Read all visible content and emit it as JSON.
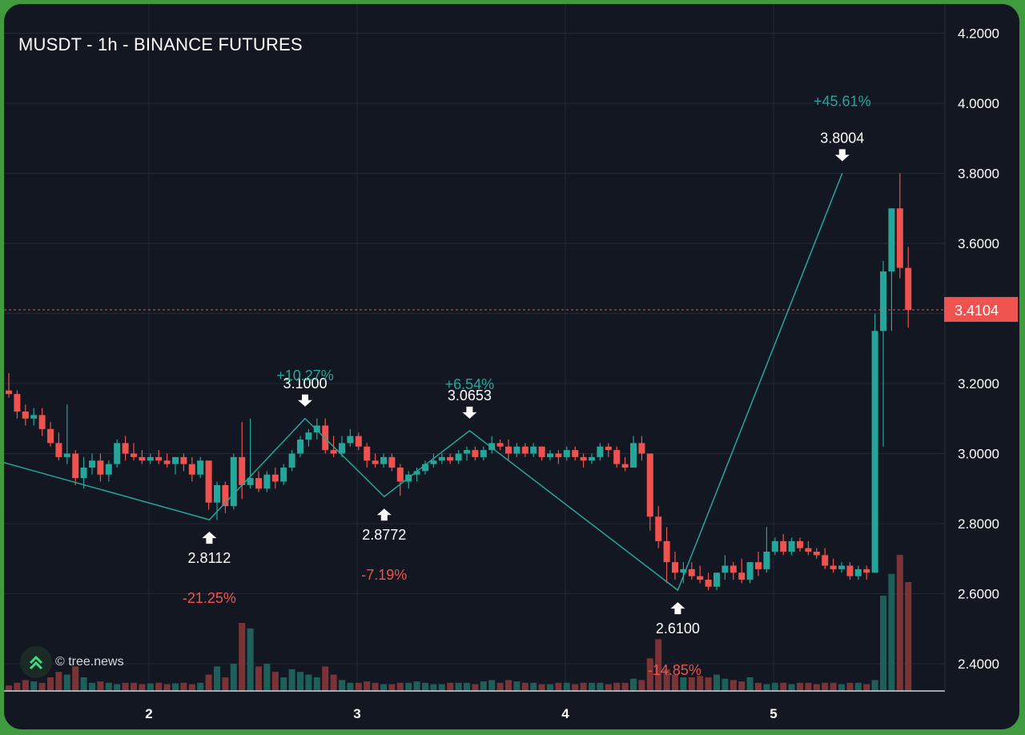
{
  "chart_data": {
    "type": "candlestick",
    "title": "MUSDT - 1h - BINANCE FUTURES",
    "x_ticks": [
      "2",
      "3",
      "4",
      "5"
    ],
    "y_ticks": [
      "2.4000",
      "2.6000",
      "2.8000",
      "3.0000",
      "3.2000",
      "3.4000",
      "3.6000",
      "3.8000",
      "4.0000",
      "4.2000"
    ],
    "ylim": [
      2.32,
      4.26
    ],
    "last_price": "3.4104",
    "grid": true,
    "colors": {
      "up": "#26a69a",
      "down": "#ef5350",
      "zigzag": "#26a69a",
      "background": "#131722",
      "grid": "#252a36"
    },
    "pivots": [
      {
        "x": 0.0,
        "y": 3.19,
        "label": ""
      },
      {
        "x": 2.29,
        "y": 2.8112,
        "label": "2.8112",
        "kind": "low",
        "pct": "-21.25%"
      },
      {
        "x": 2.75,
        "y": 3.1,
        "label": "3.1000",
        "kind": "high",
        "pct": "+10.27%"
      },
      {
        "x": 3.13,
        "y": 2.8772,
        "label": "2.8772",
        "kind": "low",
        "pct": "-7.19%"
      },
      {
        "x": 3.54,
        "y": 3.0653,
        "label": "3.0653",
        "kind": "high",
        "pct": "+6.54%"
      },
      {
        "x": 4.54,
        "y": 2.61,
        "label": "2.6100",
        "kind": "low",
        "pct": "-14.85%"
      },
      {
        "x": 5.33,
        "y": 3.8004,
        "label": "3.8004",
        "kind": "high",
        "pct": "+45.61%"
      }
    ],
    "candles": [
      {
        "o": 3.18,
        "h": 3.23,
        "l": 3.16,
        "c": 3.17
      },
      {
        "o": 3.17,
        "h": 3.18,
        "l": 3.1,
        "c": 3.12
      },
      {
        "o": 3.12,
        "h": 3.14,
        "l": 3.08,
        "c": 3.1
      },
      {
        "o": 3.1,
        "h": 3.13,
        "l": 3.08,
        "c": 3.11
      },
      {
        "o": 3.11,
        "h": 3.13,
        "l": 3.05,
        "c": 3.07
      },
      {
        "o": 3.07,
        "h": 3.09,
        "l": 3.02,
        "c": 3.03
      },
      {
        "o": 3.03,
        "h": 3.06,
        "l": 2.98,
        "c": 2.99
      },
      {
        "o": 2.99,
        "h": 3.14,
        "l": 2.97,
        "c": 3.0
      },
      {
        "o": 3.0,
        "h": 3.01,
        "l": 2.91,
        "c": 2.93
      },
      {
        "o": 2.93,
        "h": 2.99,
        "l": 2.9,
        "c": 2.96
      },
      {
        "o": 2.96,
        "h": 3.0,
        "l": 2.94,
        "c": 2.98
      },
      {
        "o": 2.98,
        "h": 3.0,
        "l": 2.92,
        "c": 2.94
      },
      {
        "o": 2.94,
        "h": 2.98,
        "l": 2.92,
        "c": 2.97
      },
      {
        "o": 2.97,
        "h": 3.04,
        "l": 2.96,
        "c": 3.03
      },
      {
        "o": 3.03,
        "h": 3.05,
        "l": 2.98,
        "c": 3.0
      },
      {
        "o": 3.0,
        "h": 3.03,
        "l": 2.98,
        "c": 2.99
      },
      {
        "o": 2.99,
        "h": 3.01,
        "l": 2.97,
        "c": 2.98
      },
      {
        "o": 2.98,
        "h": 3.0,
        "l": 2.97,
        "c": 2.99
      },
      {
        "o": 2.99,
        "h": 3.01,
        "l": 2.97,
        "c": 2.98
      },
      {
        "o": 2.98,
        "h": 3.0,
        "l": 2.96,
        "c": 2.97
      },
      {
        "o": 2.97,
        "h": 2.99,
        "l": 2.94,
        "c": 2.99
      },
      {
        "o": 2.99,
        "h": 3.0,
        "l": 2.95,
        "c": 2.97
      },
      {
        "o": 2.97,
        "h": 2.99,
        "l": 2.92,
        "c": 2.94
      },
      {
        "o": 2.94,
        "h": 2.99,
        "l": 2.93,
        "c": 2.98
      },
      {
        "o": 2.98,
        "h": 2.98,
        "l": 2.84,
        "c": 2.86
      },
      {
        "o": 2.86,
        "h": 2.92,
        "l": 2.81,
        "c": 2.91
      },
      {
        "o": 2.91,
        "h": 2.92,
        "l": 2.83,
        "c": 2.85
      },
      {
        "o": 2.85,
        "h": 3.0,
        "l": 2.84,
        "c": 2.99
      },
      {
        "o": 2.99,
        "h": 3.09,
        "l": 2.87,
        "c": 2.91
      },
      {
        "o": 2.91,
        "h": 3.1,
        "l": 2.9,
        "c": 2.93
      },
      {
        "o": 2.93,
        "h": 2.95,
        "l": 2.89,
        "c": 2.9
      },
      {
        "o": 2.9,
        "h": 2.95,
        "l": 2.89,
        "c": 2.94
      },
      {
        "o": 2.94,
        "h": 2.96,
        "l": 2.9,
        "c": 2.92
      },
      {
        "o": 2.92,
        "h": 2.97,
        "l": 2.91,
        "c": 2.96
      },
      {
        "o": 2.96,
        "h": 3.01,
        "l": 2.95,
        "c": 3.0
      },
      {
        "o": 3.0,
        "h": 3.05,
        "l": 2.99,
        "c": 3.04
      },
      {
        "o": 3.04,
        "h": 3.07,
        "l": 3.02,
        "c": 3.06
      },
      {
        "o": 3.06,
        "h": 3.1,
        "l": 3.04,
        "c": 3.08
      },
      {
        "o": 3.08,
        "h": 3.1,
        "l": 3.0,
        "c": 3.01
      },
      {
        "o": 3.01,
        "h": 3.05,
        "l": 2.99,
        "c": 3.0
      },
      {
        "o": 3.0,
        "h": 3.05,
        "l": 2.99,
        "c": 3.03
      },
      {
        "o": 3.03,
        "h": 3.07,
        "l": 3.02,
        "c": 3.05
      },
      {
        "o": 3.05,
        "h": 3.06,
        "l": 3.01,
        "c": 3.02
      },
      {
        "o": 3.02,
        "h": 3.03,
        "l": 2.96,
        "c": 2.98
      },
      {
        "o": 2.98,
        "h": 3.0,
        "l": 2.96,
        "c": 2.97
      },
      {
        "o": 2.97,
        "h": 3.0,
        "l": 2.96,
        "c": 2.99
      },
      {
        "o": 2.99,
        "h": 3.0,
        "l": 2.95,
        "c": 2.96
      },
      {
        "o": 2.96,
        "h": 2.97,
        "l": 2.88,
        "c": 2.92
      },
      {
        "o": 2.92,
        "h": 2.95,
        "l": 2.9,
        "c": 2.94
      },
      {
        "o": 2.94,
        "h": 2.96,
        "l": 2.92,
        "c": 2.95
      },
      {
        "o": 2.95,
        "h": 2.98,
        "l": 2.94,
        "c": 2.97
      },
      {
        "o": 2.97,
        "h": 3.0,
        "l": 2.96,
        "c": 2.98
      },
      {
        "o": 2.98,
        "h": 3.0,
        "l": 2.97,
        "c": 2.99
      },
      {
        "o": 2.99,
        "h": 3.0,
        "l": 2.97,
        "c": 2.98
      },
      {
        "o": 2.98,
        "h": 3.01,
        "l": 2.97,
        "c": 3.0
      },
      {
        "o": 3.0,
        "h": 3.02,
        "l": 2.98,
        "c": 3.01
      },
      {
        "o": 3.01,
        "h": 3.02,
        "l": 2.98,
        "c": 2.99
      },
      {
        "o": 2.99,
        "h": 3.02,
        "l": 2.98,
        "c": 3.01
      },
      {
        "o": 3.01,
        "h": 3.05,
        "l": 3.0,
        "c": 3.03
      },
      {
        "o": 3.03,
        "h": 3.04,
        "l": 3.01,
        "c": 3.02
      },
      {
        "o": 3.02,
        "h": 3.04,
        "l": 2.98,
        "c": 3.0
      },
      {
        "o": 3.0,
        "h": 3.03,
        "l": 2.99,
        "c": 3.02
      },
      {
        "o": 3.02,
        "h": 3.03,
        "l": 2.99,
        "c": 3.0
      },
      {
        "o": 3.0,
        "h": 3.03,
        "l": 2.99,
        "c": 3.02
      },
      {
        "o": 3.02,
        "h": 3.02,
        "l": 2.98,
        "c": 2.99
      },
      {
        "o": 2.99,
        "h": 3.01,
        "l": 2.98,
        "c": 3.0
      },
      {
        "o": 3.0,
        "h": 3.01,
        "l": 2.97,
        "c": 2.99
      },
      {
        "o": 2.99,
        "h": 3.02,
        "l": 2.98,
        "c": 3.01
      },
      {
        "o": 3.01,
        "h": 3.02,
        "l": 2.98,
        "c": 2.99
      },
      {
        "o": 2.99,
        "h": 3.0,
        "l": 2.96,
        "c": 2.98
      },
      {
        "o": 2.98,
        "h": 3.0,
        "l": 2.97,
        "c": 2.99
      },
      {
        "o": 2.99,
        "h": 3.03,
        "l": 2.98,
        "c": 3.02
      },
      {
        "o": 3.02,
        "h": 3.03,
        "l": 2.99,
        "c": 3.01
      },
      {
        "o": 3.01,
        "h": 3.02,
        "l": 2.96,
        "c": 2.97
      },
      {
        "o": 2.97,
        "h": 2.99,
        "l": 2.95,
        "c": 2.96
      },
      {
        "o": 2.96,
        "h": 3.05,
        "l": 2.96,
        "c": 3.03
      },
      {
        "o": 3.03,
        "h": 3.05,
        "l": 2.98,
        "c": 3.0
      },
      {
        "o": 3.0,
        "h": 3.0,
        "l": 2.78,
        "c": 2.82
      },
      {
        "o": 2.82,
        "h": 2.85,
        "l": 2.73,
        "c": 2.75
      },
      {
        "o": 2.75,
        "h": 2.79,
        "l": 2.63,
        "c": 2.69
      },
      {
        "o": 2.69,
        "h": 2.72,
        "l": 2.64,
        "c": 2.66
      },
      {
        "o": 2.66,
        "h": 2.69,
        "l": 2.63,
        "c": 2.67
      },
      {
        "o": 2.67,
        "h": 2.69,
        "l": 2.64,
        "c": 2.65
      },
      {
        "o": 2.65,
        "h": 2.68,
        "l": 2.63,
        "c": 2.64
      },
      {
        "o": 2.64,
        "h": 2.66,
        "l": 2.61,
        "c": 2.62
      },
      {
        "o": 2.62,
        "h": 2.66,
        "l": 2.61,
        "c": 2.66
      },
      {
        "o": 2.66,
        "h": 2.71,
        "l": 2.64,
        "c": 2.68
      },
      {
        "o": 2.68,
        "h": 2.69,
        "l": 2.64,
        "c": 2.66
      },
      {
        "o": 2.66,
        "h": 2.7,
        "l": 2.63,
        "c": 2.64
      },
      {
        "o": 2.64,
        "h": 2.69,
        "l": 2.63,
        "c": 2.69
      },
      {
        "o": 2.69,
        "h": 2.72,
        "l": 2.65,
        "c": 2.67
      },
      {
        "o": 2.67,
        "h": 2.79,
        "l": 2.66,
        "c": 2.72
      },
      {
        "o": 2.72,
        "h": 2.76,
        "l": 2.71,
        "c": 2.75
      },
      {
        "o": 2.75,
        "h": 2.77,
        "l": 2.71,
        "c": 2.72
      },
      {
        "o": 2.72,
        "h": 2.76,
        "l": 2.71,
        "c": 2.75
      },
      {
        "o": 2.75,
        "h": 2.76,
        "l": 2.72,
        "c": 2.73
      },
      {
        "o": 2.73,
        "h": 2.75,
        "l": 2.71,
        "c": 2.72
      },
      {
        "o": 2.72,
        "h": 2.73,
        "l": 2.7,
        "c": 2.71
      },
      {
        "o": 2.71,
        "h": 2.73,
        "l": 2.67,
        "c": 2.68
      },
      {
        "o": 2.68,
        "h": 2.7,
        "l": 2.66,
        "c": 2.67
      },
      {
        "o": 2.67,
        "h": 2.69,
        "l": 2.66,
        "c": 2.68
      },
      {
        "o": 2.68,
        "h": 2.69,
        "l": 2.64,
        "c": 2.65
      },
      {
        "o": 2.65,
        "h": 2.68,
        "l": 2.64,
        "c": 2.67
      },
      {
        "o": 2.67,
        "h": 2.68,
        "l": 2.64,
        "c": 2.66
      },
      {
        "o": 2.66,
        "h": 3.4,
        "l": 2.66,
        "c": 3.35
      },
      {
        "o": 3.35,
        "h": 3.55,
        "l": 3.02,
        "c": 3.52
      },
      {
        "o": 3.52,
        "h": 3.7,
        "l": 3.35,
        "c": 3.7
      },
      {
        "o": 3.7,
        "h": 3.8004,
        "l": 3.5,
        "c": 3.53
      },
      {
        "o": 3.53,
        "h": 3.59,
        "l": 3.36,
        "c": 3.41
      }
    ],
    "volume": [
      0.2,
      0.3,
      0.4,
      0.35,
      0.3,
      0.5,
      0.7,
      0.6,
      0.9,
      0.5,
      0.3,
      0.35,
      0.3,
      0.25,
      0.3,
      0.3,
      0.25,
      0.28,
      0.3,
      0.25,
      0.28,
      0.3,
      0.25,
      0.3,
      0.6,
      0.9,
      0.5,
      1.0,
      2.5,
      2.3,
      0.9,
      1.0,
      0.7,
      0.5,
      0.8,
      0.7,
      0.6,
      0.5,
      0.9,
      0.6,
      0.4,
      0.3,
      0.3,
      0.35,
      0.3,
      0.25,
      0.25,
      0.3,
      0.3,
      0.35,
      0.3,
      0.25,
      0.25,
      0.3,
      0.3,
      0.3,
      0.25,
      0.35,
      0.4,
      0.3,
      0.4,
      0.35,
      0.3,
      0.3,
      0.25,
      0.25,
      0.3,
      0.3,
      0.25,
      0.3,
      0.3,
      0.3,
      0.25,
      0.3,
      0.3,
      0.45,
      0.4,
      1.2,
      1.9,
      0.8,
      0.6,
      0.5,
      0.5,
      0.55,
      0.5,
      0.6,
      0.45,
      0.4,
      0.35,
      0.5,
      0.3,
      0.25,
      0.3,
      0.3,
      0.25,
      0.3,
      0.3,
      0.25,
      0.3,
      0.3,
      0.25,
      0.3,
      0.3,
      0.25,
      0.4,
      3.5,
      4.3,
      5.0,
      4.0,
      1.0
    ],
    "volume_max": 5.0
  },
  "watermark": {
    "text": "© tree.news",
    "logo": "double-chevron-up-icon"
  }
}
